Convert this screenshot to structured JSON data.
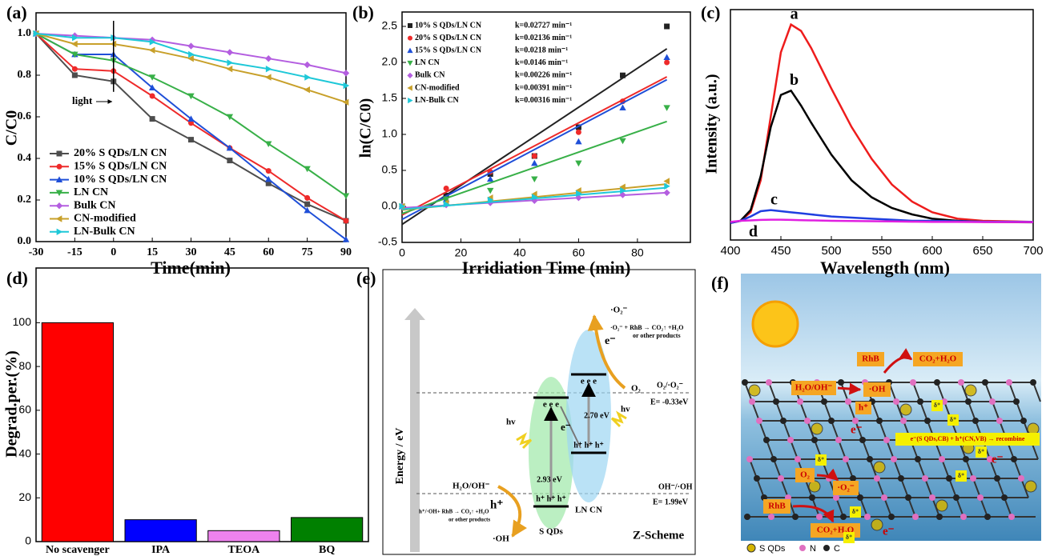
{
  "chart_data": [
    {
      "type": "line",
      "panel_label": "(a)",
      "xlabel": "Time(min)",
      "ylabel": "C/C0",
      "x": [
        -30,
        -15,
        0,
        15,
        30,
        45,
        60,
        75,
        90
      ],
      "xlim": [
        -30,
        90
      ],
      "xticks": [
        -30,
        -15,
        0,
        15,
        30,
        45,
        60,
        75,
        90
      ],
      "ylim": [
        0,
        1.1
      ],
      "yticks": [
        {
          "value": 0,
          "label": "0.0"
        },
        0.2,
        0.4,
        0.6,
        0.8,
        {
          "value": 1,
          "label": "1.0"
        }
      ],
      "annotation": {
        "text": "light",
        "x": 0
      },
      "legend": "lower left",
      "series": [
        {
          "name": "20% S QDs/LN CN",
          "color": "#4d4d4d",
          "marker": "square",
          "values": [
            1.0,
            0.8,
            0.77,
            0.59,
            0.49,
            0.39,
            0.28,
            0.18,
            0.1
          ]
        },
        {
          "name": "15% S QDs/LN CN",
          "color": "#ee2a2a",
          "marker": "circle",
          "values": [
            1.0,
            0.83,
            0.82,
            0.7,
            0.57,
            0.45,
            0.34,
            0.21,
            0.1
          ]
        },
        {
          "name": "10% S QDs/LN CN",
          "color": "#1f4fd8",
          "marker": "triangle-up",
          "values": [
            1.0,
            0.9,
            0.9,
            0.74,
            0.59,
            0.45,
            0.3,
            0.15,
            0.01
          ]
        },
        {
          "name": "LN CN",
          "color": "#38b048",
          "marker": "triangle-down",
          "values": [
            1.0,
            0.9,
            0.87,
            0.79,
            0.7,
            0.6,
            0.47,
            0.35,
            0.22
          ]
        },
        {
          "name": "Bulk CN",
          "color": "#b45ee0",
          "marker": "diamond",
          "values": [
            1.0,
            0.99,
            0.98,
            0.97,
            0.94,
            0.91,
            0.88,
            0.85,
            0.81
          ]
        },
        {
          "name": "CN-modified",
          "color": "#c8a02a",
          "marker": "triangle-left",
          "values": [
            1.0,
            0.95,
            0.95,
            0.92,
            0.88,
            0.83,
            0.79,
            0.73,
            0.67
          ]
        },
        {
          "name": "LN-Bulk CN",
          "color": "#1ec8d8",
          "marker": "triangle-right",
          "values": [
            1.0,
            0.98,
            0.98,
            0.96,
            0.9,
            0.86,
            0.83,
            0.79,
            0.75
          ]
        }
      ]
    },
    {
      "type": "scatter",
      "panel_label": "(b)",
      "xlabel": "Irridiation Time (min)",
      "ylabel": "ln(C/C0)",
      "x": [
        0,
        15,
        30,
        45,
        60,
        75,
        90
      ],
      "xlim": [
        0,
        98
      ],
      "xticks": [
        0,
        20,
        40,
        60,
        80
      ],
      "ylim": [
        -0.5,
        2.7
      ],
      "yticks": [
        -0.5,
        {
          "value": 0,
          "label": "0.0"
        },
        0.5,
        {
          "value": 1,
          "label": "1.0"
        },
        1.5,
        {
          "value": 2,
          "label": "2.0"
        },
        2.5
      ],
      "fit_x": [
        0,
        90
      ],
      "legend": "upper left",
      "series": [
        {
          "name": "10% S QDs/LN CN",
          "k_label": "k=0.02727 min⁻¹",
          "color": "#222222",
          "marker": "square",
          "values": [
            0,
            0.15,
            0.45,
            0.7,
            1.1,
            1.82,
            2.5
          ],
          "fit": [
            -0.25,
            2.19
          ]
        },
        {
          "name": "20% S QDs/LN CN",
          "k_label": "k=0.02136 min⁻¹",
          "color": "#ee2a2a",
          "marker": "circle",
          "values": [
            0,
            0.25,
            0.48,
            0.7,
            1.03,
            1.46,
            2.0
          ],
          "fit": [
            -0.12,
            1.8
          ]
        },
        {
          "name": "15% S QDs/LN CN",
          "k_label": "k=0.0218 min⁻¹",
          "color": "#1f4fd8",
          "marker": "triangle-up",
          "values": [
            0,
            0.1,
            0.38,
            0.6,
            0.9,
            1.37,
            2.07
          ],
          "fit": [
            -0.18,
            1.76
          ]
        },
        {
          "name": "LN CN",
          "k_label": "k=0.0146 min⁻¹",
          "color": "#38b048",
          "marker": "triangle-down",
          "values": [
            0,
            0.1,
            0.22,
            0.38,
            0.6,
            0.91,
            1.37
          ],
          "fit": [
            -0.1,
            1.18
          ]
        },
        {
          "name": "Bulk CN",
          "k_label": "k=0.00226 min⁻¹",
          "color": "#b45ee0",
          "marker": "diamond",
          "values": [
            0,
            0.02,
            0.05,
            0.08,
            0.12,
            0.16,
            0.19
          ],
          "fit": [
            -0.02,
            0.19
          ]
        },
        {
          "name": "CN-modified",
          "k_label": "k=0.00391 min⁻¹",
          "color": "#c8a02a",
          "marker": "triangle-left",
          "values": [
            0,
            0.05,
            0.12,
            0.17,
            0.22,
            0.27,
            0.35
          ],
          "fit": [
            -0.05,
            0.31
          ]
        },
        {
          "name": "LN-Bulk CN",
          "k_label": "k=0.00316 min⁻¹",
          "color": "#1ec8d8",
          "marker": "triangle-right",
          "values": [
            0,
            0.03,
            0.09,
            0.13,
            0.18,
            0.22,
            0.28
          ],
          "fit": [
            -0.04,
            0.26
          ]
        }
      ]
    },
    {
      "type": "line",
      "panel_label": "(c)",
      "xlabel": "Wavelength (nm)",
      "ylabel": "Intensity (a.u.)",
      "x": [
        400,
        410,
        420,
        430,
        440,
        450,
        460,
        470,
        480,
        500,
        520,
        540,
        560,
        580,
        600,
        625,
        650,
        700
      ],
      "xlim": [
        400,
        700
      ],
      "xticks": [
        400,
        450,
        500,
        550,
        600,
        650,
        700
      ],
      "ylim": [
        -8,
        100
      ],
      "curve_labels": true,
      "series": [
        {
          "name": "a",
          "color": "#ee1c1c",
          "values": [
            0,
            1,
            5,
            20,
            50,
            80,
            93,
            90,
            82,
            63,
            45,
            30,
            18,
            10,
            5,
            2,
            1,
            0.5
          ]
        },
        {
          "name": "b",
          "color": "#000000",
          "values": [
            0,
            1,
            6,
            22,
            45,
            60,
            62,
            55,
            47,
            32,
            20,
            12,
            7,
            4,
            2,
            1,
            0.5,
            0.3
          ]
        },
        {
          "name": "c",
          "color": "#1f3fe0",
          "values": [
            0,
            1,
            3,
            5.5,
            6,
            5.5,
            5,
            4.5,
            4,
            3,
            2.5,
            2,
            1.5,
            1,
            1,
            0.8,
            0.6,
            0.5
          ]
        },
        {
          "name": "d",
          "color": "#e020e0",
          "values": [
            0.5,
            1,
            1.2,
            1.4,
            1.5,
            1.5,
            1.4,
            1.3,
            1.2,
            1,
            0.9,
            0.8,
            0.7,
            0.6,
            0.5,
            0.5,
            0.4,
            0.4
          ]
        }
      ]
    },
    {
      "type": "bar",
      "panel_label": "(d)",
      "ylabel": "Degrad.per.(%)",
      "categories": [
        "No scavenger",
        "IPA",
        "TEOA",
        "BQ"
      ],
      "values": [
        100,
        10,
        5,
        11
      ],
      "colors": [
        "#ff0000",
        "#0000ff",
        "#ee82ee",
        "#008000"
      ],
      "ylim": [
        0,
        125
      ],
      "yticks": [
        0,
        20,
        40,
        60,
        80,
        100
      ]
    }
  ],
  "panel_e": {
    "label": "(e)",
    "y_axis": "Energy / eV",
    "o2_radical": "·O₂⁻",
    "reaction_top": "·O₂⁻ + RhB → CO₂↑ +H₂O",
    "reaction_top_2": "or other products",
    "cb_electrons": "e e e",
    "electron": "e⁻",
    "o2": "O₂",
    "o2_couple": "O₂/·O₂⁻",
    "o2_potential": "E= -0.33eV",
    "light": "hv",
    "gap_ln": "2.70 eV",
    "gap_s": "2.93 eV",
    "vb_holes": "h⁺ h⁺ h⁺",
    "h2o_couple": "H₂O/OH⁻",
    "oh_couple": "OH⁻/·OH",
    "oh_potential": "E= 1.99eV",
    "hole": "h⁺",
    "reaction_bottom": "h⁺/·OH+ RhB → CO₂↑ +H₂O",
    "reaction_bottom_2": "or other products",
    "oh_radical": "·OH",
    "s_qds": "S QDs",
    "ln_cn": "LN CN",
    "scheme": "Z-Scheme"
  },
  "panel_f": {
    "label": "(f)",
    "rhb": "RhB",
    "products": "CO₂+H₂O",
    "h2o": "H₂O/OH⁻",
    "oh": "·OH",
    "hole": "h⁺",
    "electron": "e⁻",
    "recombine": "e⁻(S QDs,CB) + h⁺(CN,VB) → recombine",
    "o2": "O₂",
    "superoxide": "·O₂⁻",
    "delta": "δ⁺",
    "legend": [
      "S QDs",
      "N",
      "C"
    ]
  }
}
